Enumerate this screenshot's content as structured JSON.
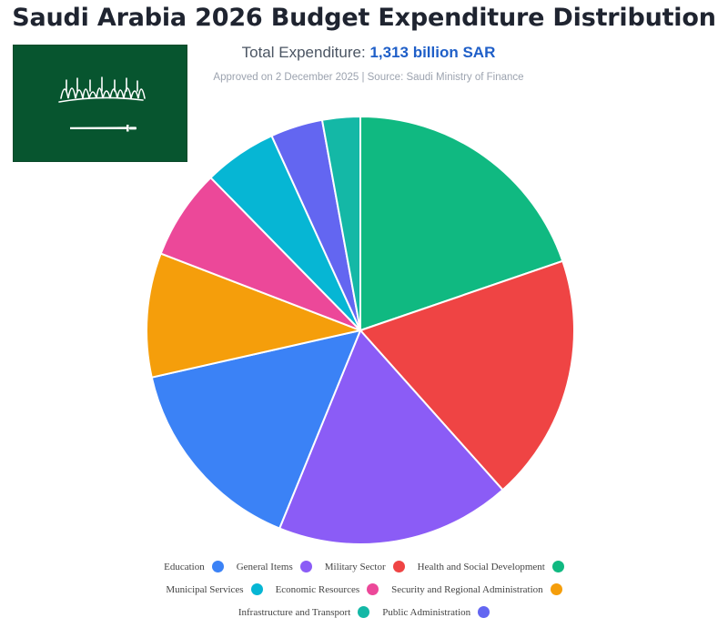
{
  "header": {
    "title": "Saudi Arabia 2026 Budget Expenditure Distribution",
    "total_label": "Total Expenditure:",
    "total_value": "1,313 billion SAR",
    "source": "Approved on 2 December 2025 | Source: Saudi Ministry of Finance"
  },
  "flag": {
    "icon": "saudi-flag",
    "background": "#07552f",
    "shahada_text": "لا إله إلا الله محمد رسول الله"
  },
  "chart_data": {
    "type": "pie",
    "title": "Saudi Arabia 2026 Budget Expenditure Distribution",
    "start": "top, clockwise",
    "legend_position": "bottom",
    "categories": [
      "Health and Social Development",
      "Military Sector",
      "General Items",
      "Education",
      "Security and Regional Administration",
      "Economic Resources",
      "Municipal Services",
      "Public Administration",
      "Infrastructure and Transport"
    ],
    "values": [
      20,
      18.9,
      18,
      15.5,
      9.5,
      6.9,
      5.6,
      4.0,
      2.9
    ],
    "colors": [
      "#10b981",
      "#ef4444",
      "#8b5cf6",
      "#3b82f6",
      "#f59e0b",
      "#ec4899",
      "#06b6d4",
      "#6366f1",
      "#14b8a6"
    ]
  },
  "legend": {
    "rows": [
      [
        {
          "label": "Education",
          "color": "#3b82f6"
        },
        {
          "label": "General Items",
          "color": "#8b5cf6"
        },
        {
          "label": "Military Sector",
          "color": "#ef4444"
        },
        {
          "label": "Health and Social Development",
          "color": "#10b981"
        }
      ],
      [
        {
          "label": "Municipal Services",
          "color": "#06b6d4"
        },
        {
          "label": "Economic Resources",
          "color": "#ec4899"
        },
        {
          "label": "Security and Regional Administration",
          "color": "#f59e0b"
        }
      ],
      [
        {
          "label": "Infrastructure and Transport",
          "color": "#14b8a6"
        },
        {
          "label": "Public Administration",
          "color": "#6366f1"
        }
      ]
    ]
  }
}
